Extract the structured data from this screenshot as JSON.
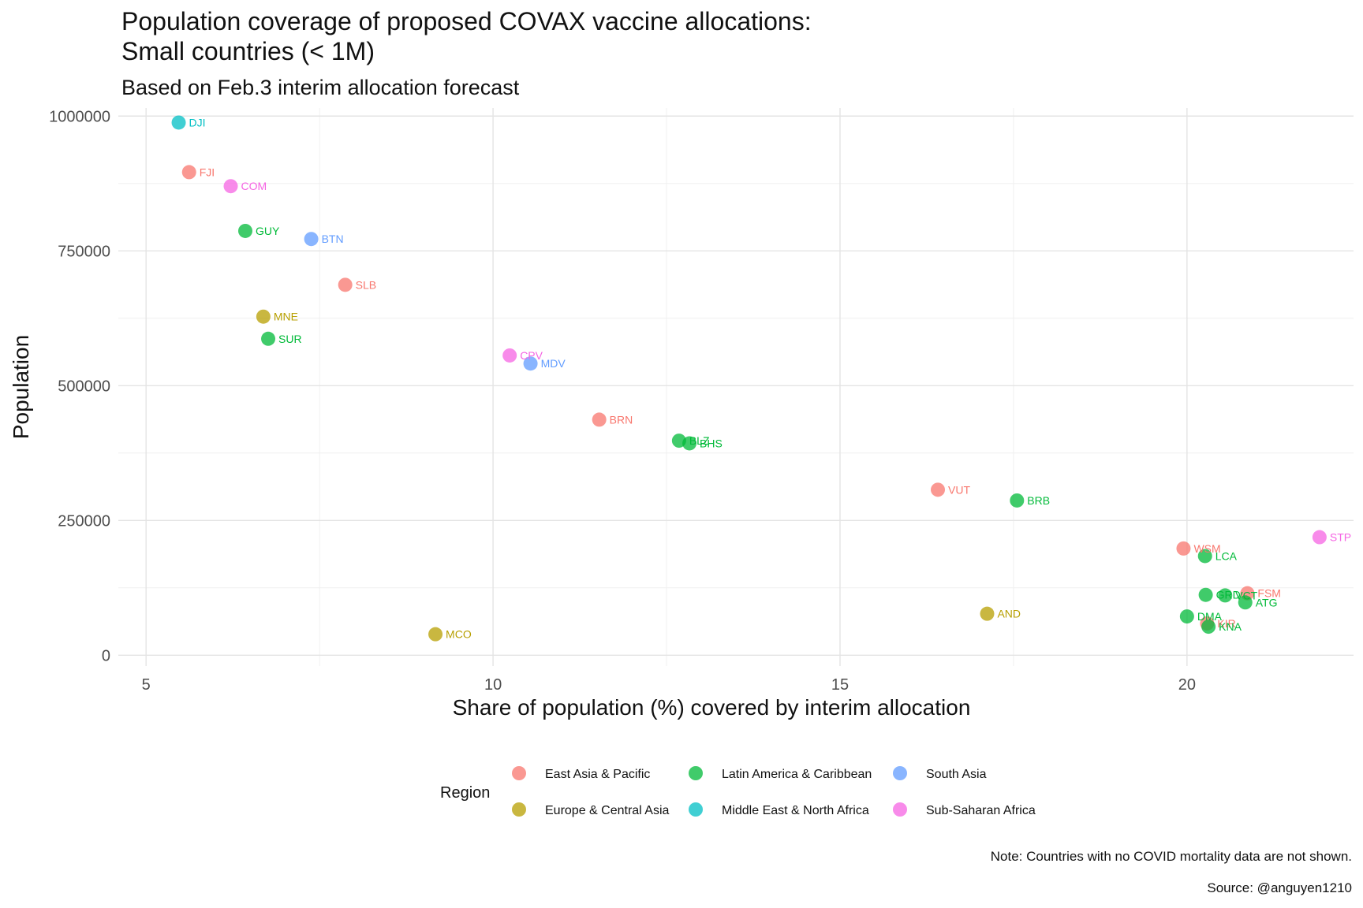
{
  "title_line1": "Population coverage of proposed COVAX vaccine allocations:",
  "title_line2": "Small countries (< 1M)",
  "subtitle": "Based on Feb.3 interim allocation forecast",
  "note": "Note: Countries with no COVID mortality data are not shown.",
  "source": "Source: @anguyen1210",
  "chart_data": {
    "type": "scatter",
    "xlabel": "Share of population (%) covered by interim allocation",
    "ylabel": "Population",
    "xlim": [
      4.6,
      22.4
    ],
    "ylim": [
      -20000,
      1015000
    ],
    "xticks": [
      5,
      10,
      15,
      20
    ],
    "yticks": [
      0,
      250000,
      500000,
      750000,
      1000000
    ],
    "ytick_labels": [
      "0",
      "250000",
      "500000",
      "750000",
      "1000000"
    ],
    "grid": true,
    "legend": {
      "title": "Region",
      "position": "bottom",
      "items": [
        {
          "name": "East Asia & Pacific",
          "color": "#F8766D"
        },
        {
          "name": "Europe & Central Asia",
          "color": "#B79F00"
        },
        {
          "name": "Latin America & Caribbean",
          "color": "#00BA38"
        },
        {
          "name": "Middle East & North Africa",
          "color": "#00BFC4"
        },
        {
          "name": "South Asia",
          "color": "#619CFF"
        },
        {
          "name": "Sub-Saharan Africa",
          "color": "#F564E3"
        }
      ]
    },
    "points": [
      {
        "label": "DJI",
        "x": 5.47,
        "y": 988000,
        "region": "Middle East & North Africa"
      },
      {
        "label": "FJI",
        "x": 5.62,
        "y": 896000,
        "region": "East Asia & Pacific"
      },
      {
        "label": "COM",
        "x": 6.22,
        "y": 870000,
        "region": "Sub-Saharan Africa"
      },
      {
        "label": "GUY",
        "x": 6.43,
        "y": 787000,
        "region": "Latin America & Caribbean"
      },
      {
        "label": "BTN",
        "x": 7.38,
        "y": 772000,
        "region": "South Asia"
      },
      {
        "label": "SLB",
        "x": 7.87,
        "y": 687000,
        "region": "East Asia & Pacific"
      },
      {
        "label": "MNE",
        "x": 6.69,
        "y": 628000,
        "region": "Europe & Central Asia"
      },
      {
        "label": "SUR",
        "x": 6.76,
        "y": 587000,
        "region": "Latin America & Caribbean"
      },
      {
        "label": "CPV",
        "x": 10.24,
        "y": 556000,
        "region": "Sub-Saharan Africa"
      },
      {
        "label": "MDV",
        "x": 10.54,
        "y": 541000,
        "region": "South Asia"
      },
      {
        "label": "BRN",
        "x": 11.53,
        "y": 437000,
        "region": "East Asia & Pacific"
      },
      {
        "label": "BLZ",
        "x": 12.68,
        "y": 398000,
        "region": "Latin America & Caribbean"
      },
      {
        "label": "BHS",
        "x": 12.83,
        "y": 393000,
        "region": "Latin America & Caribbean"
      },
      {
        "label": "VUT",
        "x": 16.41,
        "y": 307000,
        "region": "East Asia & Pacific"
      },
      {
        "label": "BRB",
        "x": 17.55,
        "y": 287000,
        "region": "Latin America & Caribbean"
      },
      {
        "label": "STP",
        "x": 21.91,
        "y": 219000,
        "region": "Sub-Saharan Africa"
      },
      {
        "label": "WSM",
        "x": 19.95,
        "y": 198000,
        "region": "East Asia & Pacific"
      },
      {
        "label": "LCA",
        "x": 20.26,
        "y": 184000,
        "region": "Latin America & Caribbean"
      },
      {
        "label": "FSM",
        "x": 20.87,
        "y": 115000,
        "region": "East Asia & Pacific"
      },
      {
        "label": "GRD",
        "x": 20.27,
        "y": 112000,
        "region": "Latin America & Caribbean"
      },
      {
        "label": "VCT",
        "x": 20.55,
        "y": 111000,
        "region": "Latin America & Caribbean"
      },
      {
        "label": "ATG",
        "x": 20.84,
        "y": 98000,
        "region": "Latin America & Caribbean"
      },
      {
        "label": "AND",
        "x": 17.12,
        "y": 77000,
        "region": "Europe & Central Asia"
      },
      {
        "label": "DMA",
        "x": 20.0,
        "y": 72000,
        "region": "Latin America & Caribbean"
      },
      {
        "label": "KIR",
        "x": 20.29,
        "y": 59000,
        "region": "East Asia & Pacific"
      },
      {
        "label": "KNA",
        "x": 20.31,
        "y": 53000,
        "region": "Latin America & Caribbean"
      },
      {
        "label": "MCO",
        "x": 9.17,
        "y": 39000,
        "region": "Europe & Central Asia"
      }
    ]
  }
}
